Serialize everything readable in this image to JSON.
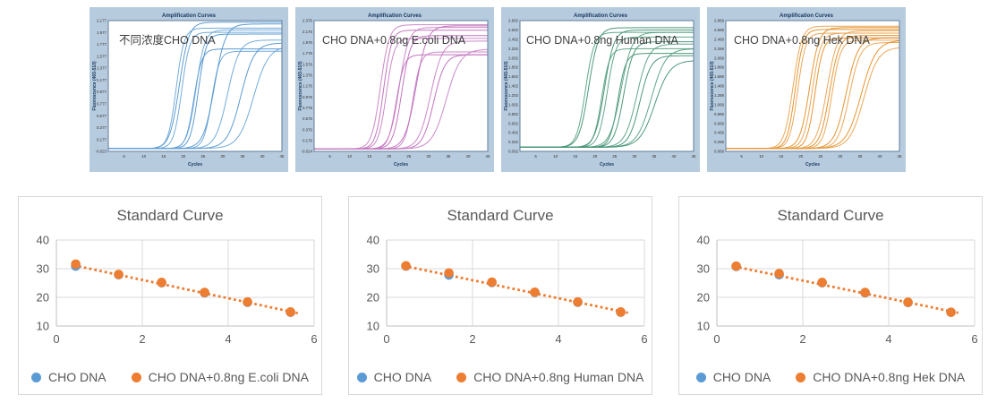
{
  "chart_data": [
    {
      "id": "amp-cho",
      "type": "line",
      "title": "Amplification Curves",
      "annotation": "不同浓度CHO DNA",
      "xlabel": "Cycles",
      "ylabel": "Fluorescence (465-510)",
      "panel_bg": "#b7cbde",
      "curve_colors": [
        "#6aa5d8",
        "#4f93cf"
      ],
      "xlim": [
        1,
        45
      ],
      "xticks": [
        5,
        10,
        15,
        20,
        25,
        30,
        35,
        40,
        45
      ],
      "ylim": [
        -0.023,
        2.177
      ],
      "yticks": [
        "2.177",
        "1.977",
        "1.777",
        "1.577",
        "1.377",
        "1.177",
        "0.977",
        "0.777",
        "0.577",
        "0.377",
        "0.177",
        "-0.023"
      ],
      "baseline": 0.025,
      "curves": [
        {
          "ct": 18.2,
          "top": 2.05,
          "k": 1.0
        },
        {
          "ct": 19.0,
          "top": 2.15,
          "k": 1.2
        },
        {
          "ct": 19.6,
          "top": 1.98,
          "k": 1.0
        },
        {
          "ct": 22.7,
          "top": 1.7,
          "k": 1.0
        },
        {
          "ct": 23.2,
          "top": 2.02,
          "k": 1.1
        },
        {
          "ct": 23.8,
          "top": 1.95,
          "k": 1.0
        },
        {
          "ct": 27.2,
          "top": 1.66,
          "k": 1.0
        },
        {
          "ct": 27.9,
          "top": 2.12,
          "k": 1.4
        },
        {
          "ct": 31.2,
          "top": 1.85,
          "k": 1.5
        },
        {
          "ct": 34.6,
          "top": 1.8,
          "k": 1.7
        },
        {
          "ct": 37.8,
          "top": 1.75,
          "k": 1.9
        }
      ]
    },
    {
      "id": "amp-ecoli",
      "type": "line",
      "title": "Amplification Curves",
      "annotation": "CHO DNA+0.8ng E.coli DNA",
      "xlabel": "Cycles",
      "ylabel": "Fluorescence (465-510)",
      "panel_bg": "#b7cbde",
      "curve_colors": [
        "#c77fc4",
        "#bd6ab9"
      ],
      "xlim": [
        1,
        45
      ],
      "xticks": [
        5,
        10,
        15,
        20,
        25,
        30,
        35,
        40,
        45
      ],
      "ylim": [
        -0.024,
        2.376
      ],
      "yticks": [
        "2.376",
        "2.176",
        "1.976",
        "1.776",
        "1.576",
        "1.376",
        "1.176",
        "0.976",
        "0.776",
        "0.576",
        "0.376",
        "0.176",
        "-0.024"
      ],
      "baseline": 0.02,
      "curves": [
        {
          "ct": 17.8,
          "top": 2.3,
          "k": 1.1
        },
        {
          "ct": 18.6,
          "top": 2.2,
          "k": 1.0
        },
        {
          "ct": 19.3,
          "top": 2.05,
          "k": 1.0
        },
        {
          "ct": 21.8,
          "top": 1.75,
          "k": 1.0
        },
        {
          "ct": 22.5,
          "top": 2.25,
          "k": 1.2
        },
        {
          "ct": 23.2,
          "top": 2.1,
          "k": 1.1
        },
        {
          "ct": 26.0,
          "top": 1.8,
          "k": 1.0
        },
        {
          "ct": 26.8,
          "top": 2.28,
          "k": 1.4
        },
        {
          "ct": 30.5,
          "top": 2.0,
          "k": 1.5
        },
        {
          "ct": 31.3,
          "top": 1.75,
          "k": 1.4
        },
        {
          "ct": 34.5,
          "top": 1.85,
          "k": 1.8
        }
      ]
    },
    {
      "id": "amp-human",
      "type": "line",
      "title": "Amplification Curves",
      "annotation": "CHO DNA+0.8ng Human DNA",
      "xlabel": "Cycles",
      "ylabel": "Fluorescence (465-510)",
      "panel_bg": "#b7cbde",
      "curve_colors": [
        "#55a081",
        "#3f9070"
      ],
      "xlim": [
        1,
        45
      ],
      "xticks": [
        5,
        10,
        15,
        20,
        25,
        30,
        35,
        40,
        45
      ],
      "ylim": [
        0.002,
        2.802
      ],
      "yticks": [
        "2.802",
        "2.602",
        "2.402",
        "2.202",
        "2.002",
        "1.802",
        "1.602",
        "1.402",
        "1.202",
        "1.002",
        "0.802",
        "0.602",
        "0.402",
        "0.202",
        "0.002"
      ],
      "baseline": 0.09,
      "curves": [
        {
          "ct": 17.6,
          "top": 2.55,
          "k": 1.1
        },
        {
          "ct": 18.4,
          "top": 2.65,
          "k": 1.2
        },
        {
          "ct": 21.7,
          "top": 2.2,
          "k": 1.0
        },
        {
          "ct": 22.4,
          "top": 2.6,
          "k": 1.2
        },
        {
          "ct": 23.1,
          "top": 2.45,
          "k": 1.1
        },
        {
          "ct": 25.8,
          "top": 2.1,
          "k": 1.0
        },
        {
          "ct": 26.6,
          "top": 2.55,
          "k": 1.4
        },
        {
          "ct": 27.3,
          "top": 2.35,
          "k": 1.2
        },
        {
          "ct": 30.6,
          "top": 2.3,
          "k": 1.5
        },
        {
          "ct": 31.4,
          "top": 2.05,
          "k": 1.4
        },
        {
          "ct": 34.3,
          "top": 2.2,
          "k": 1.8
        },
        {
          "ct": 35.2,
          "top": 1.95,
          "k": 1.9
        }
      ]
    },
    {
      "id": "amp-hek",
      "type": "line",
      "title": "Amplification Curves",
      "annotation": "CHO DNA+0.8ng Hek DNA",
      "xlabel": "Cycles",
      "ylabel": "Fluorescence (465-510)",
      "panel_bg": "#b7cbde",
      "curve_colors": [
        "#eaa14b",
        "#e38c1f"
      ],
      "xlim": [
        1,
        45
      ],
      "xticks": [
        5,
        10,
        15,
        20,
        25,
        30,
        35,
        40,
        45
      ],
      "ylim": [
        0.069,
        2.869
      ],
      "yticks": [
        "2.869",
        "2.669",
        "2.469",
        "2.269",
        "2.069",
        "1.869",
        "1.669",
        "1.469",
        "1.269",
        "1.069",
        "0.869",
        "0.669",
        "0.469",
        "0.269",
        "0.069"
      ],
      "baseline": 0.13,
      "curves": [
        {
          "ct": 18.0,
          "top": 2.75,
          "k": 1.1
        },
        {
          "ct": 18.6,
          "top": 2.68,
          "k": 1.0
        },
        {
          "ct": 19.2,
          "top": 2.6,
          "k": 1.0
        },
        {
          "ct": 22.2,
          "top": 2.72,
          "k": 1.2
        },
        {
          "ct": 22.9,
          "top": 2.6,
          "k": 1.1
        },
        {
          "ct": 23.6,
          "top": 2.5,
          "k": 1.0
        },
        {
          "ct": 26.6,
          "top": 2.65,
          "k": 1.3
        },
        {
          "ct": 27.3,
          "top": 2.55,
          "k": 1.2
        },
        {
          "ct": 27.9,
          "top": 2.45,
          "k": 1.1
        },
        {
          "ct": 31.5,
          "top": 2.5,
          "k": 1.5
        },
        {
          "ct": 32.3,
          "top": 2.4,
          "k": 1.4
        },
        {
          "ct": 35.3,
          "top": 2.45,
          "k": 1.9
        },
        {
          "ct": 36.0,
          "top": 2.3,
          "k": 1.8
        }
      ]
    },
    {
      "id": "std-ecoli",
      "type": "scatter",
      "title": "Standard Curve",
      "xlim": [
        0,
        6
      ],
      "ylim": [
        10,
        40
      ],
      "xticks": [
        0,
        2,
        4,
        6
      ],
      "yticks": [
        10,
        20,
        30,
        40
      ],
      "grid": true,
      "series": [
        {
          "name": "CHO DNA",
          "color": "#5b9bd5",
          "x": [
            0.45,
            1.45,
            2.45,
            3.45,
            4.45,
            5.45
          ],
          "y": [
            30.9,
            27.9,
            25.1,
            21.6,
            18.3,
            14.8
          ]
        },
        {
          "name": "CHO DNA+0.8ng E.coli DNA",
          "color": "#ed7d31",
          "x": [
            0.45,
            1.45,
            2.45,
            3.45,
            4.45,
            5.45
          ],
          "y": [
            31.6,
            28.0,
            25.2,
            21.7,
            18.4,
            14.9
          ]
        }
      ],
      "trendline": {
        "color": "#ed7d31",
        "style": "dotted",
        "x": [
          0.4,
          5.62
        ],
        "y": [
          31.2,
          14.5
        ]
      },
      "legend": [
        {
          "label": "CHO DNA",
          "color": "#5b9bd5"
        },
        {
          "label": "CHO DNA+0.8ng E.coli DNA",
          "color": "#ed7d31"
        }
      ]
    },
    {
      "id": "std-human",
      "type": "scatter",
      "title": "Standard Curve",
      "xlim": [
        0,
        6
      ],
      "ylim": [
        10,
        40
      ],
      "xticks": [
        0,
        2,
        4,
        6
      ],
      "yticks": [
        10,
        20,
        30,
        40
      ],
      "grid": true,
      "series": [
        {
          "name": "CHO DNA",
          "color": "#5b9bd5",
          "x": [
            0.45,
            1.45,
            2.45,
            3.45,
            4.45,
            5.45
          ],
          "y": [
            30.9,
            27.8,
            25.2,
            21.7,
            18.3,
            14.8
          ]
        },
        {
          "name": "CHO DNA+0.8ng Human DNA",
          "color": "#ed7d31",
          "x": [
            0.45,
            1.45,
            2.45,
            3.45,
            4.45,
            5.45
          ],
          "y": [
            31.0,
            28.5,
            25.3,
            21.8,
            18.4,
            14.9
          ]
        }
      ],
      "trendline": {
        "color": "#ed7d31",
        "style": "dotted",
        "x": [
          0.4,
          5.62
        ],
        "y": [
          31.0,
          14.6
        ]
      },
      "legend": [
        {
          "label": "CHO DNA",
          "color": "#5b9bd5"
        },
        {
          "label": "CHO DNA+0.8ng Human DNA",
          "color": "#ed7d31"
        }
      ]
    },
    {
      "id": "std-hek",
      "type": "scatter",
      "title": "Standard Curve",
      "xlim": [
        0,
        6
      ],
      "ylim": [
        10,
        40
      ],
      "xticks": [
        0,
        2,
        4,
        6
      ],
      "yticks": [
        10,
        20,
        30,
        40
      ],
      "grid": true,
      "series": [
        {
          "name": "CHO DNA",
          "color": "#5b9bd5",
          "x": [
            0.45,
            1.45,
            2.45,
            3.45,
            4.45,
            5.45
          ],
          "y": [
            30.8,
            27.9,
            25.1,
            21.6,
            18.2,
            14.8
          ]
        },
        {
          "name": "CHO DNA+0.8ng Hek DNA",
          "color": "#ed7d31",
          "x": [
            0.45,
            1.45,
            2.45,
            3.45,
            4.45,
            5.45
          ],
          "y": [
            30.9,
            28.3,
            25.2,
            21.7,
            18.3,
            14.8
          ]
        }
      ],
      "trendline": {
        "color": "#ed7d31",
        "style": "dotted",
        "x": [
          0.4,
          5.62
        ],
        "y": [
          30.8,
          14.6
        ]
      },
      "legend": [
        {
          "label": "CHO DNA",
          "color": "#5b9bd5"
        },
        {
          "label": "CHO DNA+0.8ng Hek DNA",
          "color": "#ed7d31"
        }
      ]
    }
  ]
}
